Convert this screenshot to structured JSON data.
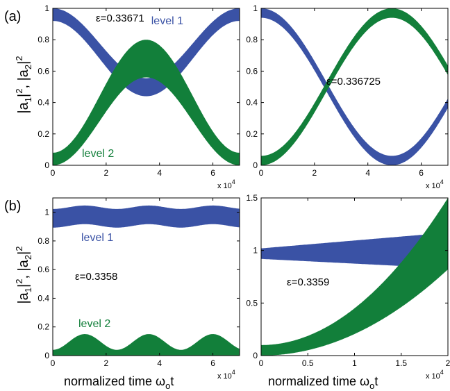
{
  "colors": {
    "level1": "#3a52a5",
    "level2": "#127f3a",
    "axis": "#000000"
  },
  "figure": {
    "ylabel_rows": [
      "|a",
      "1",
      "|",
      "2",
      ", |a",
      "2",
      "|",
      "2"
    ],
    "xlabel_main": "normalized time ω",
    "xlabel_sub": "o",
    "xlabel_end": "t"
  },
  "chart_data": [
    {
      "type": "area",
      "panel_label": "(a)",
      "xlim": [
        0,
        70000
      ],
      "ylim": [
        0,
        1
      ],
      "xticks": [
        0,
        20000,
        40000,
        60000
      ],
      "xtick_labels": [
        "0",
        "2",
        "4",
        "6"
      ],
      "yticks": [
        0,
        0.2,
        0.4,
        0.6,
        0.8,
        1
      ],
      "ytick_labels": [
        "0",
        "0.2",
        "0.4",
        "0.6",
        "0.8",
        "1"
      ],
      "x_multiplier": "x 10",
      "x_multiplier_exp": "4",
      "annotation": "ε=0.33671",
      "series": [
        {
          "name": "level 1",
          "x": [
            0,
            35000,
            70000
          ],
          "upper": [
            1.0,
            0.555,
            1.0
          ],
          "lower": [
            0.92,
            0.44,
            0.92
          ]
        },
        {
          "name": "level 2",
          "x": [
            0,
            35000,
            70000
          ],
          "upper": [
            0.08,
            0.8,
            0.08
          ],
          "lower": [
            0.0,
            0.56,
            0.0
          ]
        }
      ]
    },
    {
      "type": "area",
      "xlim": [
        0,
        70000
      ],
      "ylim": [
        0,
        1
      ],
      "xticks": [
        0,
        20000,
        40000,
        60000
      ],
      "xtick_labels": [
        "0",
        "2",
        "4",
        "6"
      ],
      "yticks": [
        0,
        0.2,
        0.4,
        0.6,
        0.8,
        1
      ],
      "ytick_labels": [
        "0",
        "0.2",
        "0.4",
        "0.6",
        "0.8",
        "1"
      ],
      "x_multiplier": "x 10",
      "x_multiplier_exp": "4",
      "annotation": "ε=0.336725",
      "series": [
        {
          "name": "",
          "x": [
            0,
            49000,
            98000
          ],
          "upper": [
            1.0,
            0.06,
            1.0
          ],
          "lower": [
            0.94,
            0.0,
            0.94
          ]
        },
        {
          "name": "",
          "x": [
            0,
            49000,
            98000
          ],
          "upper": [
            0.06,
            1.0,
            0.06
          ],
          "lower": [
            0.0,
            0.94,
            0.0
          ]
        }
      ]
    },
    {
      "type": "area",
      "panel_label": "(b)",
      "xlim": [
        0,
        70000
      ],
      "ylim": [
        0,
        1.1
      ],
      "xticks": [
        0,
        20000,
        40000,
        60000
      ],
      "xtick_labels": [
        "0",
        "2",
        "4",
        "6"
      ],
      "yticks": [
        0,
        0.2,
        0.4,
        0.6,
        0.8,
        1
      ],
      "ytick_labels": [
        "0",
        "0.2",
        "0.4",
        "0.6",
        "0.8",
        "1"
      ],
      "x_multiplier": "x 10",
      "x_multiplier_exp": "4",
      "annotation": "ε=0.3358",
      "series": [
        {
          "name": "level 1",
          "period": 24000,
          "upper_base": 1.035,
          "upper_amp": 0.012,
          "lower_base": 0.905,
          "lower_amp": 0.012
        },
        {
          "name": "level 2",
          "period": 24000,
          "upper_base": 0.095,
          "upper_amp": 0.055,
          "lower_base": 0.0,
          "lower_amp": 0.0
        }
      ]
    },
    {
      "type": "area",
      "xlim": [
        0,
        20000
      ],
      "ylim": [
        0,
        1.5
      ],
      "xticks": [
        0,
        5000,
        10000,
        15000,
        20000
      ],
      "xtick_labels": [
        "0",
        "0.5",
        "1",
        "1.5",
        "2"
      ],
      "yticks": [
        0,
        0.5,
        1,
        1.5
      ],
      "ytick_labels": [
        "0",
        "0.5",
        "1",
        "1.5"
      ],
      "x_multiplier": "x 10",
      "x_multiplier_exp": "4",
      "annotation": "ε=0.3359",
      "series": [
        {
          "name": "",
          "x": [
            0,
            20000
          ],
          "upper": [
            1.02,
            1.17
          ],
          "lower": [
            0.92,
            0.83
          ]
        },
        {
          "name": "",
          "x": [
            0,
            20000
          ],
          "upper": [
            0.1,
            1.5
          ],
          "lower": [
            0.0,
            0.82
          ]
        }
      ]
    }
  ]
}
